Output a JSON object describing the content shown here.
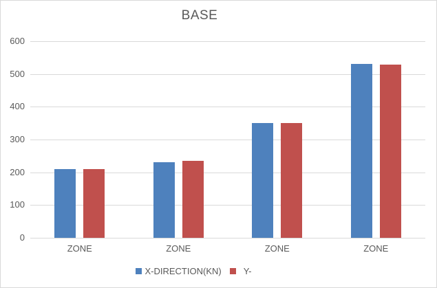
{
  "window": {
    "background": "#ffffff",
    "border_color": "#d9d9d9"
  },
  "chart_data": {
    "type": "bar",
    "title": "BASE",
    "categories": [
      "ZONE",
      "ZONE",
      "ZONE",
      "ZONE"
    ],
    "series": [
      {
        "name": "X-DIRECTION(KN)",
        "color": "#4e81bd",
        "values": [
          210,
          231,
          351,
          530
        ]
      },
      {
        "name": "Y-",
        "color": "#c0504d",
        "values": [
          210,
          235,
          351,
          528
        ]
      }
    ],
    "xlabel": "",
    "ylabel": "",
    "ylim": [
      0,
      600
    ],
    "ytick_interval": 100,
    "ytick_labels": [
      "0",
      "100",
      "200",
      "300",
      "400",
      "500",
      "600"
    ],
    "grid": true,
    "gridline_color": "#d9d9d9",
    "axis_text_color": "#595959",
    "title_color": "#595959",
    "legend_position": "bottom"
  }
}
